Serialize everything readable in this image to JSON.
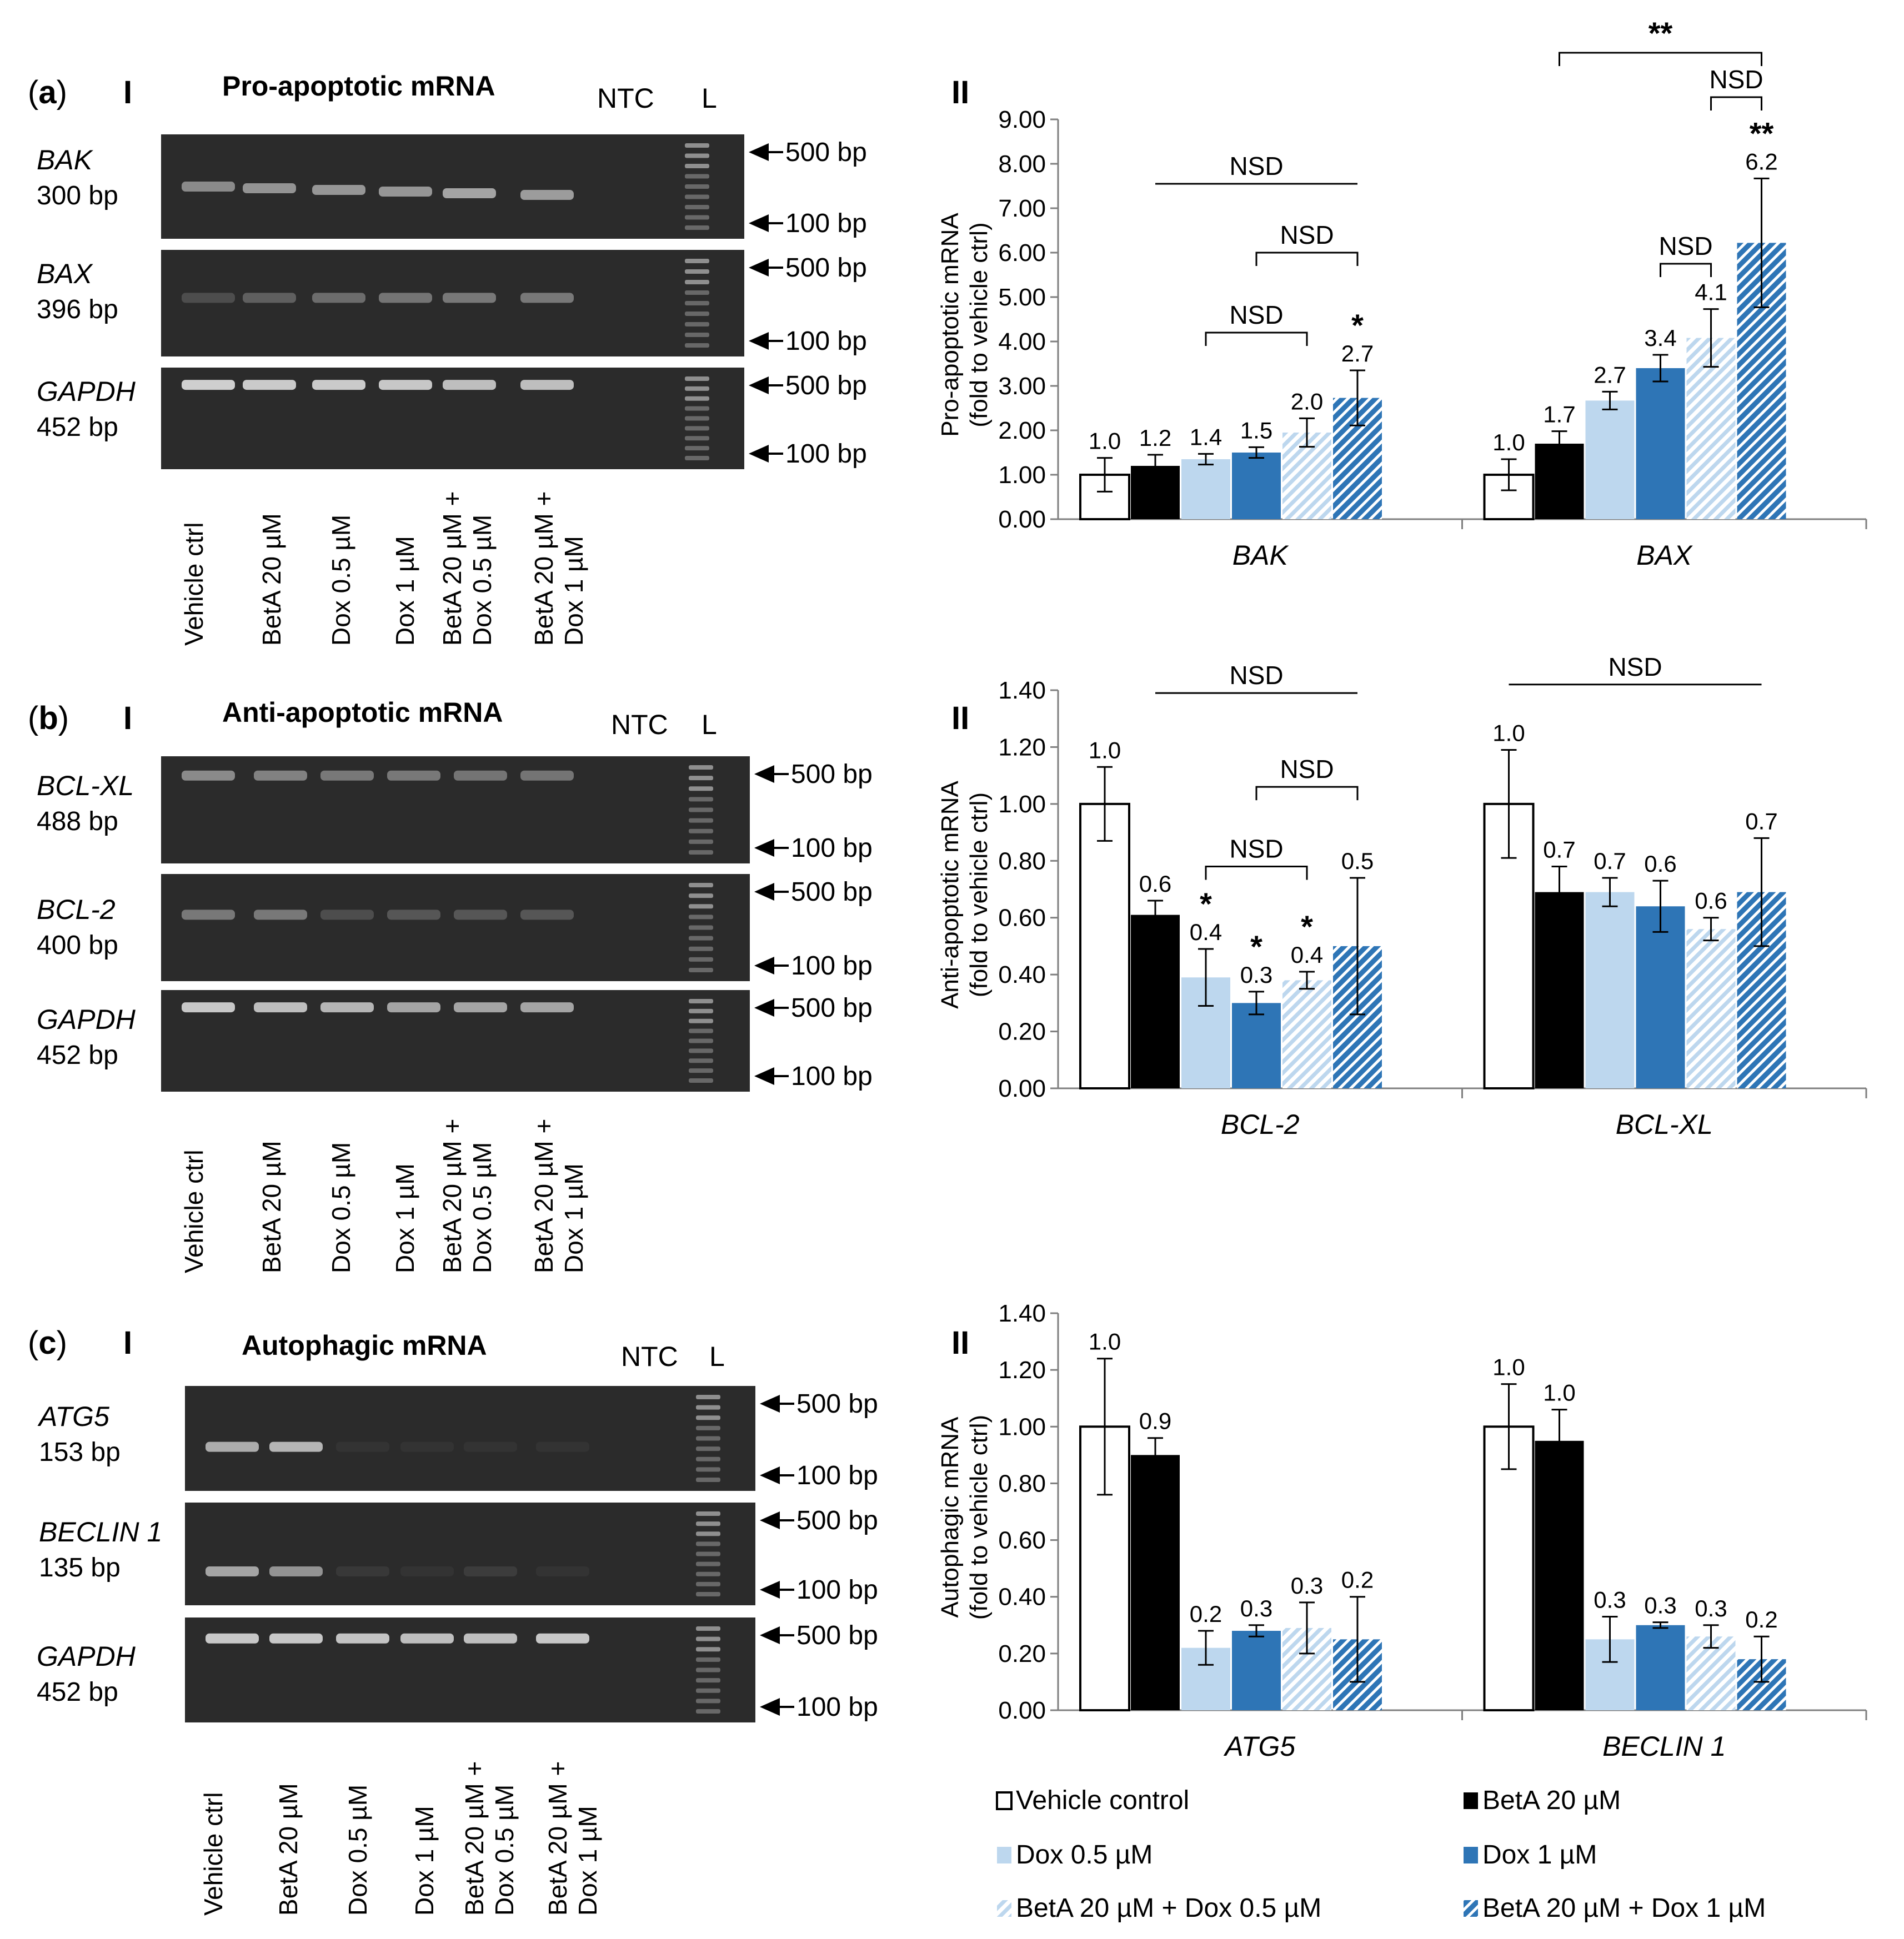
{
  "figure": {
    "colors": {
      "vehicle": "#ffffff",
      "beta": "#000000",
      "dox05": "#bdd7ee",
      "dox1": "#2e75b6",
      "combo05_bg": "#ffffff",
      "combo05_stripe": "#bdd7ee",
      "combo1_bg": "#ffffff",
      "combo1_stripe": "#2e75b6",
      "gel_bg": "#2b2b2b",
      "band": "#d8d8d8"
    }
  },
  "panels": [
    {
      "letter": "a",
      "roman_left": "I",
      "roman_right": "II",
      "gel_title": "Pro-apoptotic mRNA",
      "ntc": "NTC",
      "ladder": "L",
      "gels": [
        {
          "gene": "BAK",
          "size": "300 bp",
          "band_intensity": [
            0.55,
            0.6,
            0.62,
            0.62,
            0.7,
            0.65
          ]
        },
        {
          "gene": "BAX",
          "size": "396 bp",
          "band_intensity": [
            0.2,
            0.3,
            0.38,
            0.42,
            0.45,
            0.45
          ]
        },
        {
          "gene": "GAPDH",
          "size": "452 bp",
          "band_intensity": [
            0.95,
            0.92,
            0.92,
            0.9,
            0.85,
            0.85
          ]
        }
      ],
      "chart_ref": 0
    },
    {
      "letter": "b",
      "roman_left": "I",
      "roman_right": "II",
      "gel_title": "Anti-apoptotic mRNA",
      "ntc": "NTC",
      "ladder": "L",
      "gels": [
        {
          "gene": "BCL-XL",
          "size": "488 bp",
          "band_intensity": [
            0.55,
            0.5,
            0.45,
            0.45,
            0.42,
            0.42
          ]
        },
        {
          "gene": "BCL-2",
          "size": "400 bp",
          "band_intensity": [
            0.45,
            0.45,
            0.2,
            0.25,
            0.25,
            0.25
          ]
        },
        {
          "gene": "GAPDH",
          "size": "452 bp",
          "band_intensity": [
            0.9,
            0.85,
            0.8,
            0.7,
            0.7,
            0.7
          ]
        }
      ],
      "chart_ref": 1
    },
    {
      "letter": "c",
      "roman_left": "I",
      "roman_right": "II",
      "gel_title": "Autophagic mRNA",
      "ntc": "NTC",
      "ladder": "L",
      "gels": [
        {
          "gene": "ATG5",
          "size": "153 bp",
          "band_intensity": [
            0.75,
            0.8,
            0.05,
            0.05,
            0.05,
            0.05
          ]
        },
        {
          "gene": "BECLIN 1",
          "size": "135 bp",
          "band_intensity": [
            0.7,
            0.6,
            0.08,
            0.05,
            0.1,
            0.05
          ]
        },
        {
          "gene": "GAPDH",
          "size": "452 bp",
          "band_intensity": [
            0.9,
            0.9,
            0.88,
            0.85,
            0.85,
            0.9
          ]
        }
      ],
      "chart_ref": 2
    }
  ],
  "marker_labels": {
    "upper": "500 bp",
    "lower": "100 bp"
  },
  "lane_labels": [
    [
      "Vehicle ctrl"
    ],
    [
      "BetA 20 µM"
    ],
    [
      "Dox 0.5 µM"
    ],
    [
      "Dox 1 µM"
    ],
    [
      "BetA 20 µM +",
      "Dox 0.5 µM"
    ],
    [
      "BetA 20 µM +",
      "Dox 1 µM"
    ]
  ],
  "legend": [
    {
      "key": "vehicle",
      "label": "Vehicle control"
    },
    {
      "key": "beta",
      "label": "BetA 20 µM"
    },
    {
      "key": "dox05",
      "label": "Dox 0.5 µM"
    },
    {
      "key": "dox1",
      "label": "Dox 1 µM"
    },
    {
      "key": "combo05",
      "label": "BetA 20 µM + Dox 0.5 µM"
    },
    {
      "key": "combo1",
      "label": "BetA 20 µM + Dox 1 µM"
    }
  ],
  "chart_data": [
    {
      "type": "bar",
      "ylabel_lines": [
        "Pro-apoptotic mRNA",
        "(fold to vehicle ctrl)"
      ],
      "ylim": [
        0,
        9
      ],
      "yticks": [
        "0.00",
        "1.00",
        "2.00",
        "3.00",
        "4.00",
        "5.00",
        "6.00",
        "7.00",
        "8.00",
        "9.00"
      ],
      "tick_values": [
        0,
        1,
        2,
        3,
        4,
        5,
        6,
        7,
        8,
        9
      ],
      "categories": [
        "BAK",
        "BAX"
      ],
      "series_order": [
        "vehicle",
        "beta",
        "dox05",
        "dox1",
        "combo05",
        "combo1"
      ],
      "groups": [
        {
          "values": [
            1.0,
            1.2,
            1.35,
            1.5,
            1.95,
            2.73
          ],
          "errors": [
            0.38,
            0.25,
            0.12,
            0.12,
            0.32,
            0.62
          ],
          "labels": [
            "1.0",
            "1.2",
            "1.4",
            "1.5",
            "2.0",
            "2.7"
          ],
          "sig": [
            "",
            "",
            "",
            "",
            "",
            "*"
          ]
        },
        {
          "values": [
            1.0,
            1.7,
            2.67,
            3.4,
            4.08,
            6.22
          ],
          "errors": [
            0.35,
            0.28,
            0.2,
            0.3,
            0.65,
            1.45
          ],
          "labels": [
            "1.0",
            "1.7",
            "2.7",
            "3.4",
            "4.1",
            "6.2"
          ],
          "sig": [
            "",
            "",
            "",
            "",
            "",
            "**"
          ]
        }
      ],
      "brackets": [
        {
          "group": 0,
          "from": 1,
          "to": 5,
          "y": 7.55,
          "label": "NSD",
          "style": "line"
        },
        {
          "group": 0,
          "from": 3,
          "to": 5,
          "y": 6.0,
          "label": "NSD",
          "style": "bracket"
        },
        {
          "group": 0,
          "from": 2,
          "to": 4,
          "y": 4.2,
          "label": "NSD",
          "style": "bracket"
        },
        {
          "group": 1,
          "from": 3,
          "to": 4,
          "y": 5.75,
          "label": "NSD",
          "style": "bracket"
        },
        {
          "group": 1,
          "from": 4,
          "to": 5,
          "y": 9.5,
          "label": "NSD",
          "style": "bracket"
        },
        {
          "group": 1,
          "from": 1,
          "to": 5,
          "y": 10.5,
          "label": "**",
          "style": "bracket",
          "bold": true
        }
      ]
    },
    {
      "type": "bar",
      "ylabel_lines": [
        "Anti-apoptotic mRNA",
        "(fold to vehicle ctrl)"
      ],
      "ylim": [
        0,
        1.4
      ],
      "yticks": [
        "0.00",
        "0.20",
        "0.40",
        "0.60",
        "0.80",
        "1.00",
        "1.20",
        "1.40"
      ],
      "tick_values": [
        0,
        0.2,
        0.4,
        0.6,
        0.8,
        1.0,
        1.2,
        1.4
      ],
      "categories": [
        "BCL-2",
        "BCL-XL"
      ],
      "series_order": [
        "vehicle",
        "beta",
        "dox05",
        "dox1",
        "combo05",
        "combo1"
      ],
      "groups": [
        {
          "values": [
            1.0,
            0.61,
            0.39,
            0.3,
            0.38,
            0.5
          ],
          "errors": [
            0.13,
            0.05,
            0.1,
            0.04,
            0.03,
            0.24
          ],
          "labels": [
            "1.0",
            "0.6",
            "0.4",
            "0.3",
            "0.4",
            "0.5"
          ],
          "sig": [
            "",
            "",
            "*",
            "*",
            "*",
            ""
          ]
        },
        {
          "values": [
            1.0,
            0.69,
            0.69,
            0.64,
            0.56,
            0.69
          ],
          "errors": [
            0.19,
            0.09,
            0.05,
            0.09,
            0.04,
            0.19
          ],
          "labels": [
            "1.0",
            "0.7",
            "0.7",
            "0.6",
            "0.6",
            "0.7"
          ],
          "sig": [
            "",
            "",
            "",
            "",
            "",
            ""
          ]
        }
      ],
      "brackets": [
        {
          "group": 0,
          "from": 1,
          "to": 5,
          "y": 1.39,
          "label": "NSD",
          "style": "line"
        },
        {
          "group": 0,
          "from": 3,
          "to": 5,
          "y": 1.06,
          "label": "NSD",
          "style": "bracket"
        },
        {
          "group": 0,
          "from": 2,
          "to": 4,
          "y": 0.78,
          "label": "NSD",
          "style": "bracket"
        },
        {
          "group": 1,
          "from": 0,
          "to": 5,
          "y": 1.42,
          "label": "NSD",
          "style": "line"
        }
      ]
    },
    {
      "type": "bar",
      "ylabel_lines": [
        "Autophagic  mRNA",
        "(fold to vehicle ctrl)"
      ],
      "ylim": [
        0,
        1.4
      ],
      "yticks": [
        "0.00",
        "0.20",
        "0.40",
        "0.60",
        "0.80",
        "1.00",
        "1.20",
        "1.40"
      ],
      "tick_values": [
        0,
        0.2,
        0.4,
        0.6,
        0.8,
        1.0,
        1.2,
        1.4
      ],
      "categories": [
        "ATG5",
        "BECLIN 1"
      ],
      "series_order": [
        "vehicle",
        "beta",
        "dox05",
        "dox1",
        "combo05",
        "combo1"
      ],
      "groups": [
        {
          "values": [
            1.0,
            0.9,
            0.22,
            0.28,
            0.29,
            0.25
          ],
          "errors": [
            0.24,
            0.06,
            0.06,
            0.02,
            0.09,
            0.15
          ],
          "labels": [
            "1.0",
            "0.9",
            "0.2",
            "0.3",
            "0.3",
            "0.2"
          ],
          "sig": [
            "",
            "",
            "",
            "",
            "",
            ""
          ]
        },
        {
          "values": [
            1.0,
            0.95,
            0.25,
            0.3,
            0.26,
            0.18
          ],
          "errors": [
            0.15,
            0.11,
            0.08,
            0.01,
            0.04,
            0.08
          ],
          "labels": [
            "1.0",
            "1.0",
            "0.3",
            "0.3",
            "0.3",
            "0.2"
          ],
          "sig": [
            "",
            "",
            "",
            "",
            "",
            ""
          ]
        }
      ],
      "brackets": []
    }
  ]
}
